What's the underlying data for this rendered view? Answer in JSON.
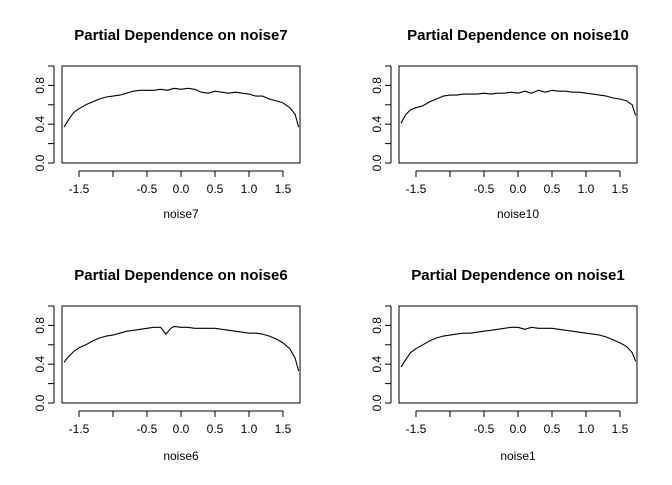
{
  "chart_data": [
    {
      "type": "line",
      "title": "Partial Dependence on noise7",
      "xlabel": "noise7",
      "ylabel": "",
      "xlim": [
        -1.75,
        1.75
      ],
      "ylim": [
        0.0,
        1.0
      ],
      "xticks": [
        -1.5,
        -0.5,
        0.0,
        0.5,
        1.0,
        1.5
      ],
      "xtick_labels": [
        "-1.5",
        "-0.5",
        "0.0",
        "0.5",
        "1.0",
        "1.5"
      ],
      "yticks": [
        0.0,
        0.4,
        0.8
      ],
      "ytick_labels": [
        "0.0",
        "0.4",
        "0.8"
      ],
      "x": [
        -1.72,
        -1.65,
        -1.58,
        -1.5,
        -1.4,
        -1.3,
        -1.2,
        -1.1,
        -1.0,
        -0.9,
        -0.8,
        -0.7,
        -0.6,
        -0.5,
        -0.4,
        -0.3,
        -0.2,
        -0.1,
        0.0,
        0.1,
        0.2,
        0.3,
        0.4,
        0.5,
        0.6,
        0.7,
        0.8,
        0.9,
        1.0,
        1.1,
        1.2,
        1.3,
        1.4,
        1.5,
        1.6,
        1.68,
        1.73
      ],
      "y": [
        0.37,
        0.45,
        0.52,
        0.56,
        0.6,
        0.63,
        0.66,
        0.68,
        0.69,
        0.7,
        0.72,
        0.74,
        0.75,
        0.75,
        0.75,
        0.76,
        0.75,
        0.77,
        0.76,
        0.77,
        0.76,
        0.73,
        0.72,
        0.74,
        0.73,
        0.72,
        0.73,
        0.72,
        0.71,
        0.69,
        0.69,
        0.66,
        0.64,
        0.62,
        0.57,
        0.5,
        0.37
      ]
    },
    {
      "type": "line",
      "title": "Partial Dependence on noise10",
      "xlabel": "noise10",
      "ylabel": "",
      "xlim": [
        -1.75,
        1.75
      ],
      "ylim": [
        0.0,
        1.0
      ],
      "xticks": [
        -1.5,
        -0.5,
        0.0,
        0.5,
        1.0,
        1.5
      ],
      "xtick_labels": [
        "-1.5",
        "-0.5",
        "0.0",
        "0.5",
        "1.0",
        "1.5"
      ],
      "yticks": [
        0.0,
        0.4,
        0.8
      ],
      "ytick_labels": [
        "0.0",
        "0.4",
        "0.8"
      ],
      "x": [
        -1.72,
        -1.65,
        -1.58,
        -1.5,
        -1.4,
        -1.3,
        -1.2,
        -1.1,
        -1.0,
        -0.9,
        -0.8,
        -0.7,
        -0.6,
        -0.5,
        -0.4,
        -0.3,
        -0.2,
        -0.1,
        0.0,
        0.1,
        0.2,
        0.3,
        0.4,
        0.5,
        0.6,
        0.7,
        0.8,
        0.9,
        1.0,
        1.1,
        1.2,
        1.3,
        1.4,
        1.5,
        1.6,
        1.68,
        1.73
      ],
      "y": [
        0.41,
        0.5,
        0.55,
        0.57,
        0.59,
        0.63,
        0.66,
        0.69,
        0.7,
        0.7,
        0.71,
        0.71,
        0.71,
        0.72,
        0.71,
        0.72,
        0.72,
        0.73,
        0.72,
        0.74,
        0.72,
        0.75,
        0.73,
        0.75,
        0.74,
        0.74,
        0.73,
        0.73,
        0.72,
        0.71,
        0.7,
        0.69,
        0.67,
        0.66,
        0.64,
        0.6,
        0.49
      ]
    },
    {
      "type": "line",
      "title": "Partial Dependence on noise6",
      "xlabel": "noise6",
      "ylabel": "",
      "xlim": [
        -1.75,
        1.75
      ],
      "ylim": [
        0.0,
        1.0
      ],
      "xticks": [
        -1.5,
        -0.5,
        0.0,
        0.5,
        1.0,
        1.5
      ],
      "xtick_labels": [
        "-1.5",
        "-0.5",
        "0.0",
        "0.5",
        "1.0",
        "1.5"
      ],
      "yticks": [
        0.0,
        0.4,
        0.8
      ],
      "ytick_labels": [
        "0.0",
        "0.4",
        "0.8"
      ],
      "x": [
        -1.72,
        -1.65,
        -1.58,
        -1.5,
        -1.4,
        -1.3,
        -1.2,
        -1.1,
        -1.0,
        -0.9,
        -0.8,
        -0.7,
        -0.6,
        -0.5,
        -0.4,
        -0.3,
        -0.22,
        -0.15,
        -0.1,
        0.0,
        0.1,
        0.2,
        0.3,
        0.4,
        0.5,
        0.6,
        0.7,
        0.8,
        0.9,
        1.0,
        1.1,
        1.2,
        1.3,
        1.4,
        1.5,
        1.6,
        1.68,
        1.73
      ],
      "y": [
        0.42,
        0.48,
        0.53,
        0.57,
        0.6,
        0.64,
        0.67,
        0.69,
        0.7,
        0.72,
        0.74,
        0.75,
        0.76,
        0.77,
        0.78,
        0.78,
        0.71,
        0.77,
        0.79,
        0.78,
        0.78,
        0.77,
        0.77,
        0.77,
        0.77,
        0.76,
        0.75,
        0.74,
        0.73,
        0.72,
        0.72,
        0.71,
        0.69,
        0.66,
        0.62,
        0.56,
        0.46,
        0.33
      ]
    },
    {
      "type": "line",
      "title": "Partial Dependence on noise1",
      "xlabel": "noise1",
      "ylabel": "",
      "xlim": [
        -1.75,
        1.75
      ],
      "ylim": [
        0.0,
        1.0
      ],
      "xticks": [
        -1.5,
        -0.5,
        0.0,
        0.5,
        1.0,
        1.5
      ],
      "xtick_labels": [
        "-1.5",
        "-0.5",
        "0.0",
        "0.5",
        "1.0",
        "1.5"
      ],
      "yticks": [
        0.0,
        0.4,
        0.8
      ],
      "ytick_labels": [
        "0.0",
        "0.4",
        "0.8"
      ],
      "x": [
        -1.72,
        -1.65,
        -1.58,
        -1.5,
        -1.4,
        -1.3,
        -1.2,
        -1.1,
        -1.0,
        -0.9,
        -0.8,
        -0.7,
        -0.6,
        -0.5,
        -0.4,
        -0.3,
        -0.2,
        -0.1,
        0.0,
        0.1,
        0.2,
        0.3,
        0.4,
        0.5,
        0.6,
        0.7,
        0.8,
        0.9,
        1.0,
        1.1,
        1.2,
        1.3,
        1.4,
        1.5,
        1.6,
        1.68,
        1.73
      ],
      "y": [
        0.37,
        0.45,
        0.52,
        0.56,
        0.6,
        0.64,
        0.67,
        0.69,
        0.7,
        0.71,
        0.72,
        0.72,
        0.73,
        0.74,
        0.75,
        0.76,
        0.77,
        0.78,
        0.78,
        0.76,
        0.78,
        0.77,
        0.77,
        0.77,
        0.76,
        0.75,
        0.74,
        0.73,
        0.72,
        0.71,
        0.7,
        0.68,
        0.65,
        0.62,
        0.58,
        0.52,
        0.43
      ]
    }
  ]
}
